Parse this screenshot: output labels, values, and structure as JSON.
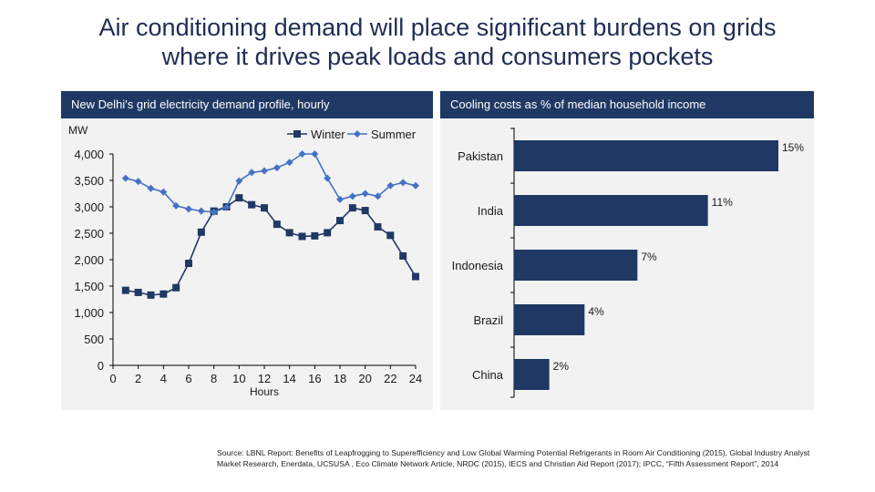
{
  "title": {
    "line1": "Air conditioning demand will place significant burdens on grids",
    "line2": "where it drives peak loads and consumers pockets"
  },
  "colors": {
    "navy": "#1f3864",
    "summer": "#4472c4",
    "winter": "#1f3864",
    "title": "#1f2e55"
  },
  "chart_data": [
    {
      "type": "line",
      "title": "New Delhi's grid electricity demand profile, hourly",
      "ylabel": "MW",
      "xlabel": "Hours",
      "x": [
        1,
        2,
        3,
        4,
        5,
        6,
        7,
        8,
        9,
        10,
        11,
        12,
        13,
        14,
        15,
        16,
        17,
        18,
        19,
        20,
        21,
        22,
        23,
        24
      ],
      "xlim": [
        0,
        24
      ],
      "ylim": [
        0,
        4000
      ],
      "xticks": [
        "0",
        "2",
        "4",
        "6",
        "8",
        "10",
        "12",
        "14",
        "16",
        "18",
        "20",
        "22",
        "24"
      ],
      "yticks": [
        "0",
        "500",
        "1,000",
        "1,500",
        "2,000",
        "2,500",
        "3,000",
        "3,500",
        "4,000"
      ],
      "legend_position": "top-right",
      "series": [
        {
          "name": "Winter",
          "marker": "square",
          "values": [
            1420,
            1380,
            1330,
            1350,
            1470,
            1930,
            2520,
            2920,
            3000,
            3170,
            3040,
            2980,
            2670,
            2510,
            2440,
            2450,
            2510,
            2740,
            2980,
            2930,
            2620,
            2460,
            2070,
            1680
          ]
        },
        {
          "name": "Summer",
          "marker": "diamond",
          "values": [
            3540,
            3480,
            3350,
            3280,
            3020,
            2960,
            2920,
            2900,
            2990,
            3490,
            3650,
            3680,
            3740,
            3840,
            4000,
            4000,
            3540,
            3140,
            3200,
            3250,
            3200,
            3400,
            3460,
            3400
          ]
        }
      ]
    },
    {
      "type": "bar",
      "orientation": "horizontal",
      "title": "Cooling costs as % of median household income",
      "categories": [
        "Pakistan",
        "India",
        "Indonesia",
        "Brazil",
        "China"
      ],
      "values": [
        15,
        11,
        7,
        4,
        2
      ],
      "value_labels": [
        "15%",
        "11%",
        "7%",
        "4%",
        "2%"
      ],
      "xlim": [
        0,
        15
      ]
    }
  ],
  "source": "Source: LBNL Report: Benefits of Leapfrogging to Superefficiency  and Low Global Warming Potential Refrigerants in Room Air Conditioning (2015), Global Industry Analyst Market Research, Enerdata, UCSUSA , Eco Climate Network Article, NRDC (2015), IECS and Christian Aid Report (2017); IPCC, “Fifth Assessment  Report”, 2014"
}
